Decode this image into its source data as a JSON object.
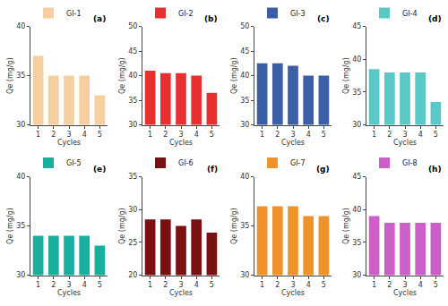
{
  "chart_data": [
    {
      "type": "bar",
      "categories": [
        "1",
        "2",
        "3",
        "4",
        "5"
      ],
      "series": [
        {
          "name": "GI-1",
          "color": "#F5CFA0",
          "values": [
            37.0,
            35.0,
            35.0,
            35.0,
            33.0
          ]
        }
      ],
      "xlabel": "Cycles",
      "ylabel": "Qe (mg/g)",
      "ylim": [
        30,
        40
      ],
      "yticks": [
        30,
        35,
        40
      ],
      "grid": false,
      "legend": "upper left",
      "annotations": [
        {
          "text": "(a)"
        }
      ]
    },
    {
      "type": "bar",
      "categories": [
        "1",
        "2",
        "3",
        "4",
        "5"
      ],
      "series": [
        {
          "name": "GI-2",
          "color": "#E83030",
          "values": [
            41.0,
            40.5,
            40.5,
            40.0,
            36.5
          ]
        }
      ],
      "xlabel": "Cycles",
      "ylabel": "Qe (mg/g)",
      "ylim": [
        30,
        50
      ],
      "yticks": [
        30,
        35,
        40,
        45,
        50
      ],
      "grid": false,
      "legend": "upper left",
      "annotations": [
        {
          "text": "(b)"
        }
      ]
    },
    {
      "type": "bar",
      "categories": [
        "1",
        "2",
        "3",
        "4",
        "5"
      ],
      "series": [
        {
          "name": "GI-3",
          "color": "#3B5EA6",
          "values": [
            42.5,
            42.5,
            42.0,
            40.0,
            40.0
          ]
        }
      ],
      "xlabel": "Cycles",
      "ylabel": "Qe (mg/g)",
      "ylim": [
        30,
        50
      ],
      "yticks": [
        30,
        35,
        40,
        45,
        50
      ],
      "grid": false,
      "legend": "upper left",
      "annotations": [
        {
          "text": "(c)"
        }
      ]
    },
    {
      "type": "bar",
      "categories": [
        "1",
        "2",
        "3",
        "4",
        "5"
      ],
      "series": [
        {
          "name": "GI-4",
          "color": "#5BC8C8",
          "values": [
            38.5,
            38.0,
            38.0,
            38.0,
            33.5
          ]
        }
      ],
      "xlabel": "Cycles",
      "ylabel": "Qe (mg/g)",
      "ylim": [
        30,
        45
      ],
      "yticks": [
        30,
        35,
        40,
        45
      ],
      "grid": false,
      "legend": "upper left",
      "annotations": [
        {
          "text": "(d)"
        }
      ]
    },
    {
      "type": "bar",
      "categories": [
        "1",
        "2",
        "3",
        "4",
        "5"
      ],
      "series": [
        {
          "name": "GI-5",
          "color": "#1AAE9E",
          "values": [
            34.0,
            34.0,
            34.0,
            34.0,
            33.0
          ]
        }
      ],
      "xlabel": "Cycles",
      "ylabel": "Qe (mg/g)",
      "ylim": [
        30,
        40
      ],
      "yticks": [
        30,
        35,
        40
      ],
      "grid": false,
      "legend": "upper left",
      "annotations": [
        {
          "text": "(e)"
        }
      ]
    },
    {
      "type": "bar",
      "categories": [
        "1",
        "2",
        "3",
        "4",
        "5"
      ],
      "series": [
        {
          "name": "GI-6",
          "color": "#7B1010",
          "values": [
            28.5,
            28.5,
            27.5,
            28.5,
            26.5
          ]
        }
      ],
      "xlabel": "Cycles",
      "ylabel": "Qe (mg/g)",
      "ylim": [
        20,
        35
      ],
      "yticks": [
        20,
        25,
        30,
        35
      ],
      "grid": false,
      "legend": "upper left",
      "annotations": [
        {
          "text": "(f)"
        }
      ]
    },
    {
      "type": "bar",
      "categories": [
        "1",
        "2",
        "3",
        "4",
        "5"
      ],
      "series": [
        {
          "name": "GI-7",
          "color": "#F0922A",
          "values": [
            37.0,
            37.0,
            37.0,
            36.0,
            36.0
          ]
        }
      ],
      "xlabel": "Cycles",
      "ylabel": "Qe (mg/g)",
      "ylim": [
        30,
        40
      ],
      "yticks": [
        30,
        35,
        40
      ],
      "grid": false,
      "legend": "upper left",
      "annotations": [
        {
          "text": "(g)"
        }
      ]
    },
    {
      "type": "bar",
      "categories": [
        "1",
        "2",
        "3",
        "4",
        "5"
      ],
      "series": [
        {
          "name": "GI-8",
          "color": "#CC5FC7",
          "values": [
            39.0,
            38.0,
            38.0,
            38.0,
            38.0
          ]
        }
      ],
      "xlabel": "Cycles",
      "ylabel": "Qe (mg/g)",
      "ylim": [
        30,
        45
      ],
      "yticks": [
        30,
        35,
        40,
        45
      ],
      "grid": false,
      "legend": "upper left",
      "annotations": [
        {
          "text": "(h)"
        }
      ]
    }
  ]
}
